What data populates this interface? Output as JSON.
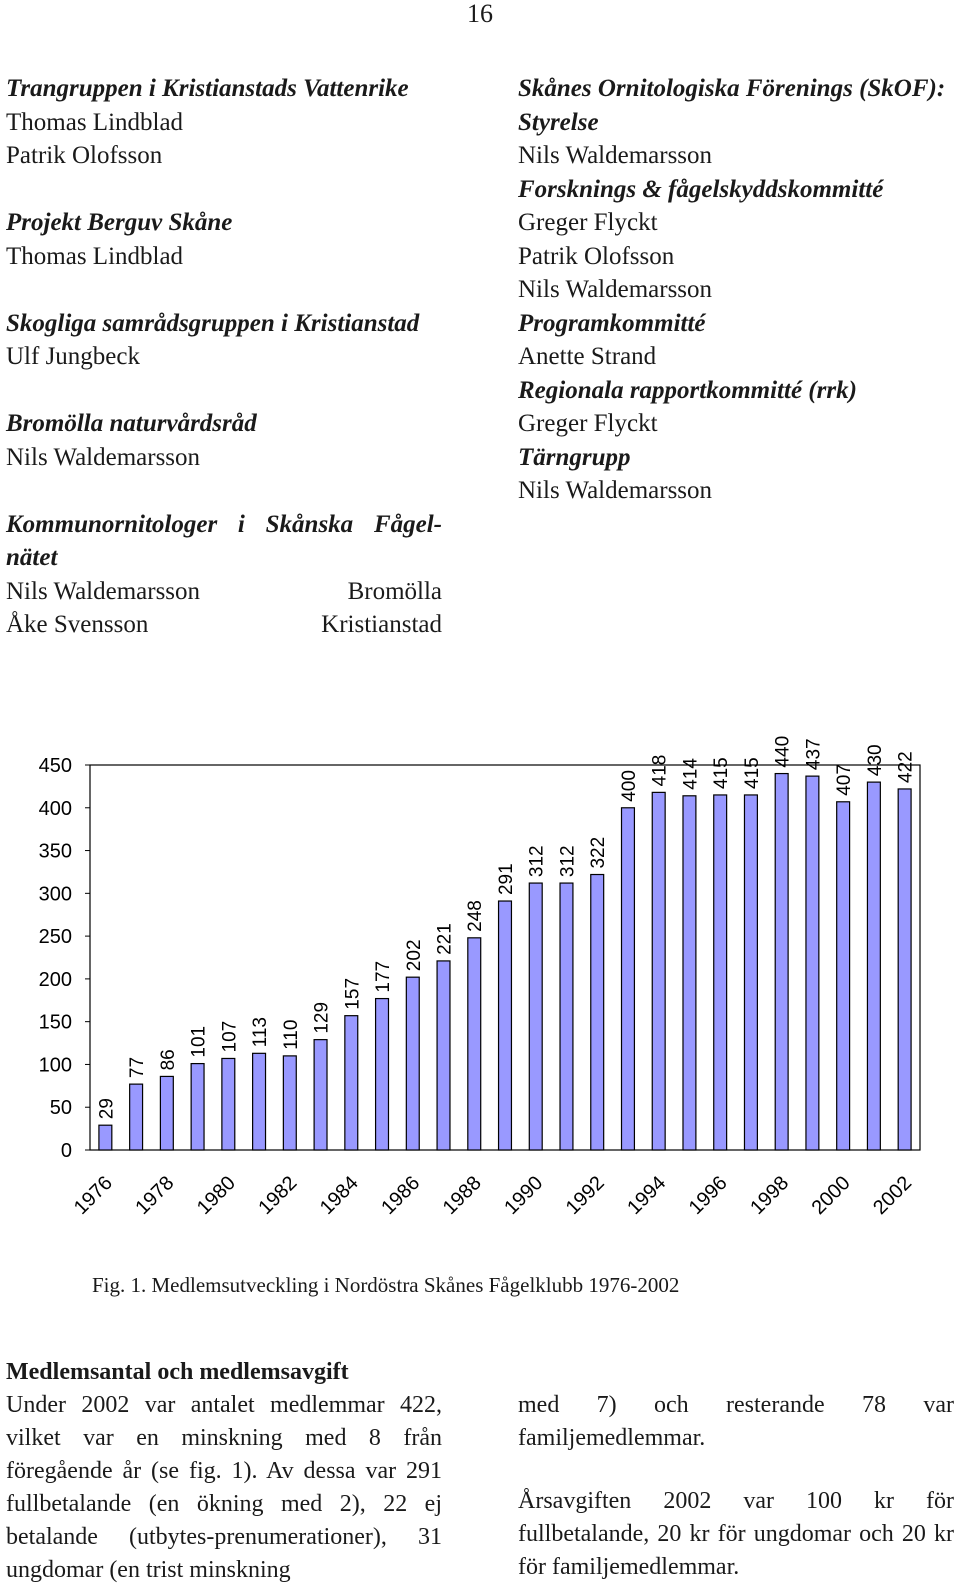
{
  "page_number": "16",
  "left_column": [
    {
      "heading": "Trangruppen i Kristianstads Vattenrike",
      "names": [
        "Thomas Lindblad",
        "Patrik Olofsson"
      ]
    },
    {
      "heading": "Projekt Berguv Skåne",
      "names": [
        "Thomas Lindblad"
      ]
    },
    {
      "heading": "Skogliga samrådsgruppen i Kristianstad",
      "names": [
        "Ulf Jungbeck"
      ]
    },
    {
      "heading": "Bromölla naturvårdsråd",
      "names": [
        "Nils Waldemarsson"
      ]
    }
  ],
  "kommun": {
    "heading_line1": "Kommunornitologer i Skånska Fågel-",
    "heading_line2": "nätet",
    "rows": [
      {
        "name": "Nils Waldemarsson",
        "place": "Bromölla"
      },
      {
        "name": "Åke Svensson",
        "place": "Kristianstad"
      }
    ]
  },
  "right_column": {
    "title": "Skånes Ornitologiska Förenings (SkOF):",
    "groups": [
      {
        "heading": "Styrelse",
        "names": [
          "Nils Waldemarsson"
        ]
      },
      {
        "heading": "Forsknings & fågelskyddskommitté",
        "names": [
          "Greger Flyckt",
          "Patrik Olofsson",
          "Nils Waldemarsson"
        ]
      },
      {
        "heading": "Programkommitté",
        "names": [
          "Anette Strand"
        ]
      },
      {
        "heading": "Regionala rapportkommitté (rrk)",
        "names": [
          "Greger Flyckt"
        ]
      },
      {
        "heading": "Tärngrupp",
        "names": [
          "Nils Waldemarsson"
        ]
      }
    ]
  },
  "chart_data": {
    "type": "bar",
    "categories": [
      "1976",
      "1977",
      "1978",
      "1979",
      "1980",
      "1981",
      "1982",
      "1983",
      "1984",
      "1985",
      "1986",
      "1987",
      "1988",
      "1989",
      "1990",
      "1991",
      "1992",
      "1993",
      "1994",
      "1995",
      "1996",
      "1997",
      "1998",
      "1999",
      "2000",
      "2001",
      "2002"
    ],
    "values": [
      29,
      77,
      86,
      101,
      107,
      113,
      110,
      129,
      157,
      177,
      202,
      221,
      248,
      291,
      312,
      312,
      322,
      400,
      418,
      414,
      415,
      415,
      440,
      437,
      407,
      430,
      422
    ],
    "x_tick_labels": [
      "1976",
      "1978",
      "1980",
      "1982",
      "1984",
      "1986",
      "1988",
      "1990",
      "1992",
      "1994",
      "1996",
      "1998",
      "2000",
      "2002"
    ],
    "y_ticks": [
      "0",
      "50",
      "100",
      "150",
      "200",
      "250",
      "300",
      "350",
      "400",
      "450"
    ],
    "ylim": [
      0,
      450
    ],
    "grid": false,
    "bar_color": "#9999ff",
    "data_labels": true
  },
  "caption": "Fig. 1. Medlemsutveckling i Nordöstra Skånes Fågelklubb 1976-2002",
  "section": {
    "title": "Medlemsantal och medlemsavgift",
    "left_text": "Under 2002 var antalet medlemmar 422, vilket var en minskning med 8 från föregående år (se fig. 1). Av dessa var 291 fullbetalande (en ökning med 2), 22 ej betalande (utbytes-prenumerationer), 31 ungdomar (en trist minskning",
    "right_text_1": "med 7) och resterande 78 var familjemedlemmar.",
    "right_text_2": "Årsavgiften 2002 var 100 kr för fullbetalande, 20 kr för ungdomar och 20 kr för familjemedlemmar."
  }
}
